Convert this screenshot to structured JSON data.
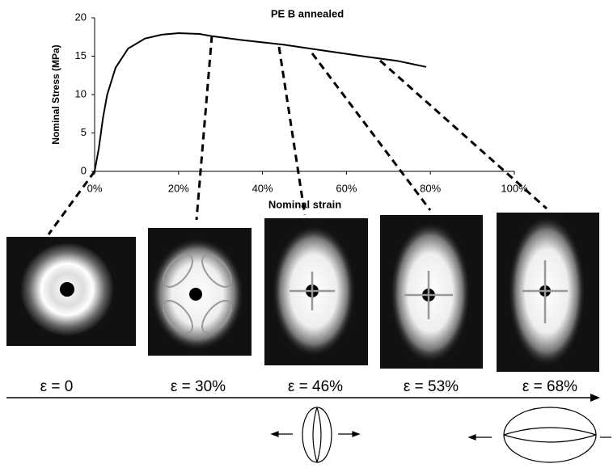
{
  "chart_data": {
    "type": "line",
    "title": "PE B annealed",
    "x_label": "Nominal strain",
    "y_label": "Nominal Stress (MPa)",
    "x": [
      0,
      1,
      2,
      3,
      5,
      8,
      12,
      16,
      20,
      25,
      28,
      35,
      45,
      55,
      65,
      72,
      79
    ],
    "y": [
      0,
      3,
      7,
      10,
      13.5,
      16,
      17.3,
      17.8,
      18,
      17.9,
      17.6,
      17.1,
      16.5,
      15.7,
      14.9,
      14.4,
      13.6
    ],
    "color": "#000000",
    "xlim": [
      0,
      100
    ],
    "ylim": [
      0,
      20
    ],
    "xticks": [
      {
        "value": 0,
        "label": "0%"
      },
      {
        "value": 20,
        "label": "20%"
      },
      {
        "value": 40,
        "label": "40%"
      },
      {
        "value": 60,
        "label": "60%"
      },
      {
        "value": 80,
        "label": "80%"
      },
      {
        "value": 100,
        "label": "100%"
      }
    ],
    "yticks": [
      0,
      5,
      10,
      15,
      20
    ]
  },
  "panels": [
    "ε = 0",
    "ε = 30%",
    "ε = 46%",
    "ε = 53%",
    "ε = 68%"
  ]
}
